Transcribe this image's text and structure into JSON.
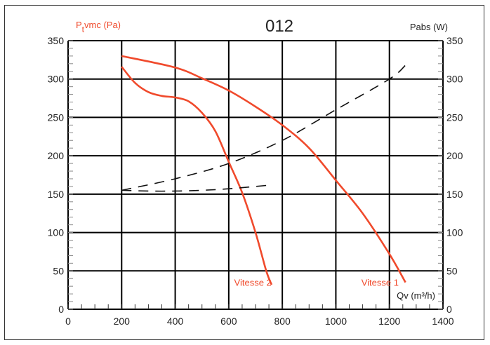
{
  "chart_data": {
    "type": "line",
    "title": "012",
    "ylabel_left": "vmc (Pa)",
    "ylabel_left_prefix": "P",
    "ylabel_left_sub": "t",
    "ylabel_right": "Pabs (W)",
    "xlabel": "Qv (m³/h)",
    "xlim": [
      0,
      1400
    ],
    "ylim": [
      0,
      350
    ],
    "y2lim": [
      0,
      350
    ],
    "xticks": [
      "0",
      "200",
      "400",
      "600",
      "800",
      "1000",
      "1200",
      "1400"
    ],
    "yticks": [
      "0",
      "50",
      "100",
      "150",
      "200",
      "250",
      "300",
      "350"
    ],
    "grid": true,
    "colors": {
      "pressure": "#f04a2c",
      "power": "#111111",
      "grid": "#000000"
    },
    "series": [
      {
        "name": "Vitesse 1",
        "kind": "pressure",
        "style": "solid",
        "x": [
          200,
          400,
          500,
          600,
          700,
          800,
          900,
          1000,
          1100,
          1200,
          1260
        ],
        "y": [
          330,
          315,
          301,
          285,
          264,
          240,
          210,
          168,
          125,
          72,
          35
        ]
      },
      {
        "name": "Vitesse 2",
        "kind": "pressure",
        "style": "solid",
        "x": [
          200,
          250,
          300,
          350,
          400,
          450,
          500,
          550,
          600,
          650,
          700,
          740,
          760
        ],
        "y": [
          316,
          295,
          283,
          278,
          276,
          271,
          256,
          232,
          192,
          152,
          100,
          50,
          32
        ]
      },
      {
        "kind": "power",
        "style": "dashed",
        "axis": "right",
        "x": [
          200,
          400,
          600,
          800,
          1000,
          1200,
          1260
        ],
        "y": [
          155,
          170,
          190,
          220,
          260,
          300,
          318
        ]
      },
      {
        "kind": "power",
        "style": "dashed",
        "axis": "right",
        "x": [
          200,
          300,
          400,
          500,
          600,
          700,
          760
        ],
        "y": [
          155,
          154,
          154,
          155,
          157,
          160,
          162
        ]
      }
    ],
    "annotations": [
      {
        "text": "Vitesse 2",
        "x": 690,
        "y": 35
      },
      {
        "text": "Vitesse 1",
        "x": 1165,
        "y": 35
      }
    ]
  }
}
